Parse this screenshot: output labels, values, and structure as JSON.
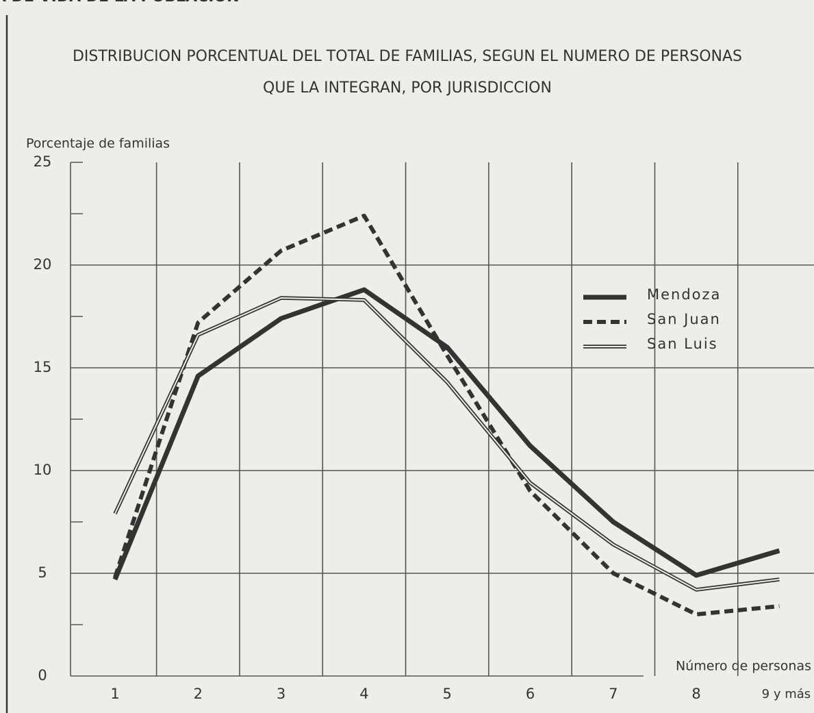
{
  "header": "A DE VIDA DE LA POBLACION",
  "chart_data": {
    "type": "line",
    "title": [
      "DISTRIBUCION PORCENTUAL DEL TOTAL DE FAMILIAS, SEGUN EL NUMERO DE PERSONAS",
      "QUE LA INTEGRAN, POR JURISDICCION"
    ],
    "y_label": "Porcentaje de familias",
    "x_label": "Número de personas",
    "categories": [
      "1",
      "2",
      "3",
      "4",
      "5",
      "6",
      "7",
      "8",
      "9 y más"
    ],
    "series": [
      {
        "name": "Mendoza",
        "color": "#333333",
        "style": "solid",
        "values": [
          4.7,
          14.6,
          17.4,
          18.8,
          16.0,
          11.2,
          7.5,
          4.9,
          6.1
        ]
      },
      {
        "name": "San Juan",
        "color": "#333333",
        "style": "dashed",
        "values": [
          4.8,
          17.2,
          20.7,
          22.4,
          15.6,
          9.0,
          5.0,
          3.0,
          3.4
        ]
      },
      {
        "name": "San Luis",
        "color": "#333333",
        "style": "double",
        "values": [
          7.9,
          16.6,
          18.4,
          18.3,
          14.3,
          9.4,
          6.4,
          4.2,
          4.7
        ]
      }
    ],
    "ylim": [
      0,
      25
    ],
    "yticks": [
      0,
      5,
      10,
      15,
      20,
      25
    ],
    "yminor_ticks": [
      2.5,
      7.5,
      12.5,
      17.5,
      22.5
    ],
    "grid": true,
    "legend": "right"
  }
}
